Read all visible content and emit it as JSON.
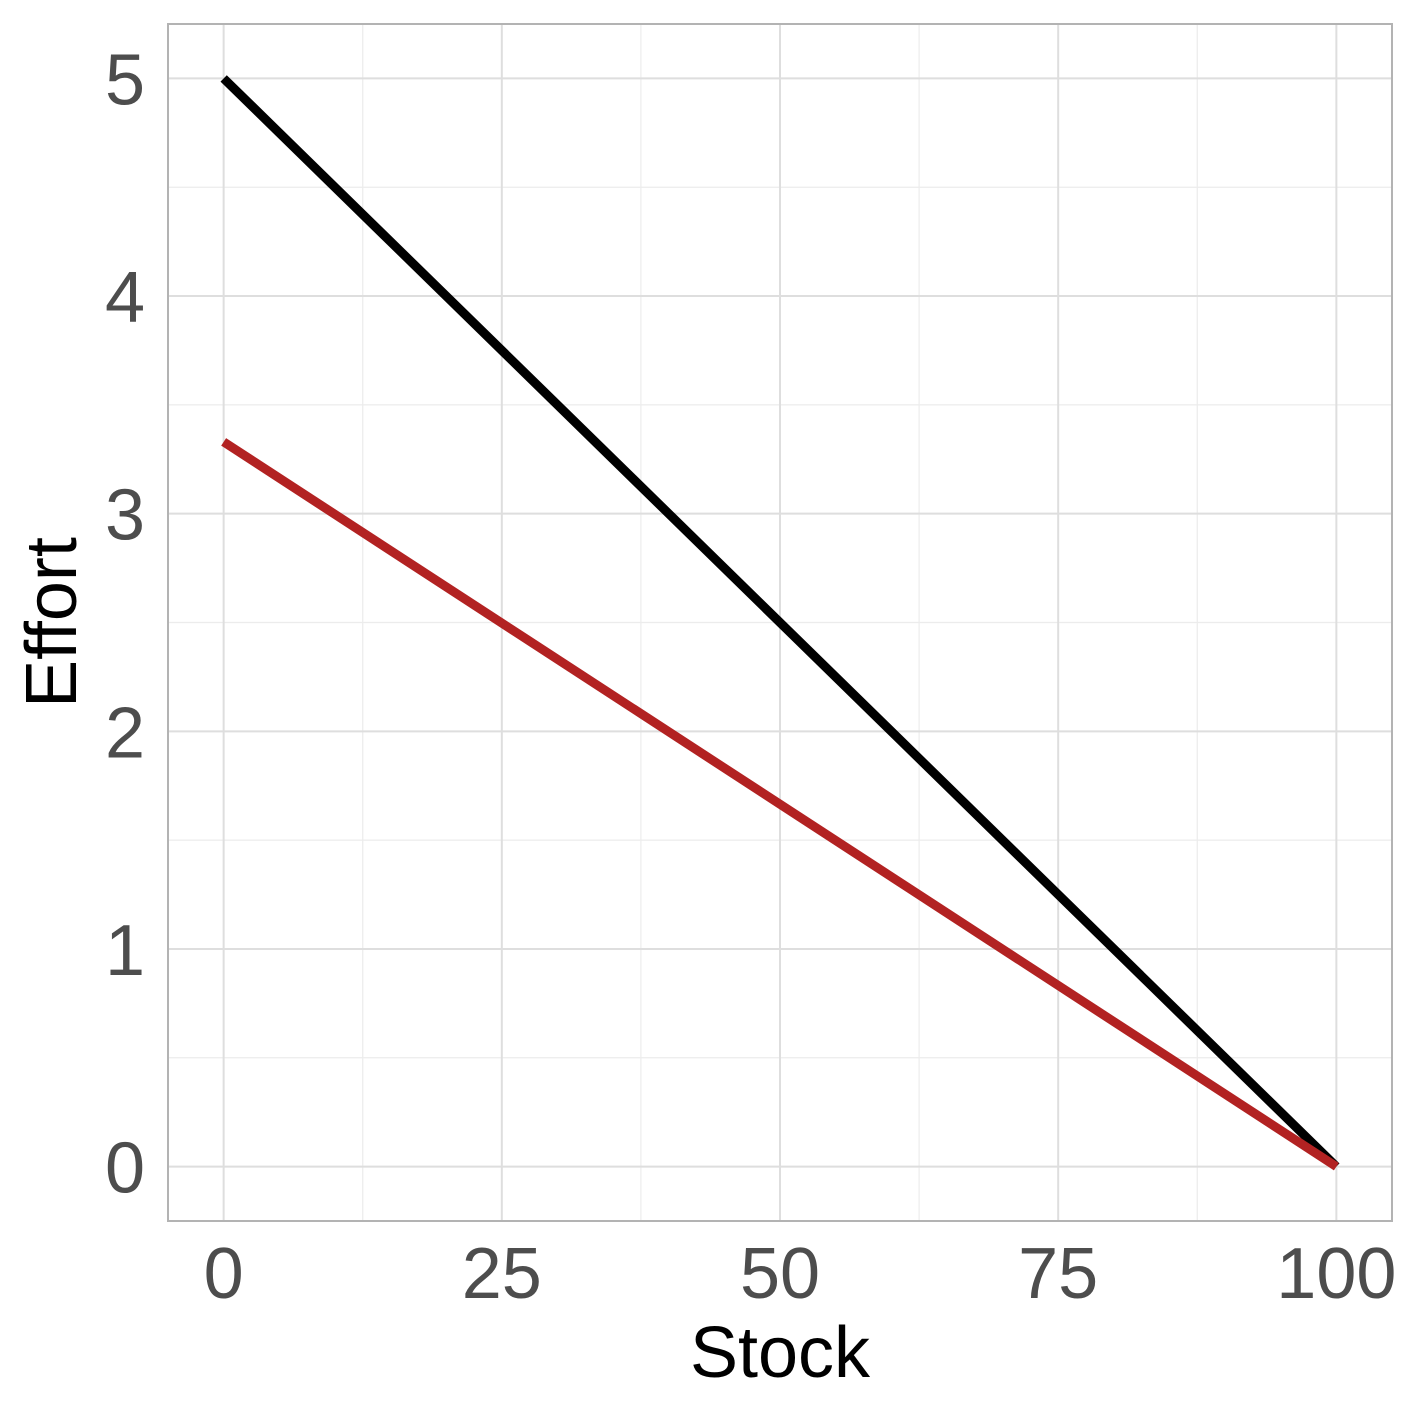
{
  "chart_data": {
    "type": "line",
    "title": "",
    "xlabel": "Stock",
    "ylabel": "Effort",
    "xlim": [
      -5,
      105
    ],
    "ylim": [
      -0.25,
      5.25
    ],
    "x_ticks": [
      0,
      25,
      50,
      75,
      100
    ],
    "x_tick_labels": [
      "0",
      "25",
      "50",
      "75",
      "100"
    ],
    "y_ticks": [
      0,
      1,
      2,
      3,
      4,
      5
    ],
    "y_tick_labels": [
      "0",
      "1",
      "2",
      "3",
      "4",
      "5"
    ],
    "grid": true,
    "legend": "none",
    "series": [
      {
        "color": "#000000",
        "x": [
          0,
          100
        ],
        "y": [
          5,
          0
        ]
      },
      {
        "color": "#b22222",
        "x": [
          0,
          100
        ],
        "y": [
          3.33,
          0
        ]
      }
    ]
  }
}
